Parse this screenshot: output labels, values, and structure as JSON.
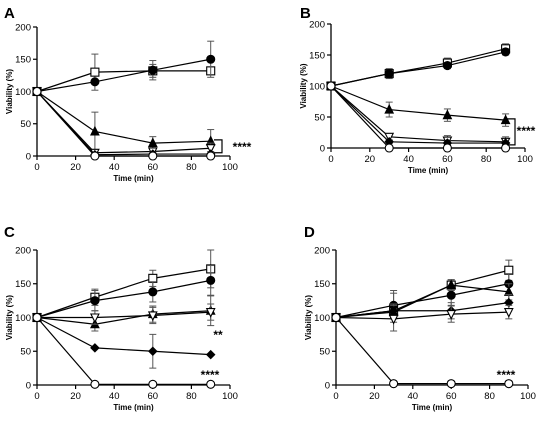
{
  "chart_data": [
    {
      "panel": "A",
      "type": "line",
      "xlabel": "Time (min)",
      "ylabel": "Viability (%)",
      "xlim": [
        0,
        100
      ],
      "ylim": [
        0,
        200
      ],
      "xticks": [
        0,
        20,
        40,
        60,
        80,
        100
      ],
      "yticks": [
        0,
        50,
        100,
        150,
        200
      ],
      "grid": false,
      "x": [
        0,
        30,
        60,
        90
      ],
      "series": [
        {
          "marker": "open-square",
          "values": [
            100,
            130,
            132,
            132
          ],
          "errors": [
            0,
            28,
            10,
            0
          ]
        },
        {
          "marker": "filled-circle",
          "values": [
            100,
            115,
            133,
            150
          ],
          "errors": [
            0,
            0,
            15,
            28
          ]
        },
        {
          "marker": "filled-triangle",
          "values": [
            100,
            38,
            20,
            23
          ],
          "errors": [
            0,
            30,
            10,
            18
          ]
        },
        {
          "marker": "open-triangle-down",
          "values": [
            100,
            5,
            7,
            12
          ],
          "errors": [
            0,
            4,
            5,
            8
          ]
        },
        {
          "marker": "filled-diamond",
          "values": [
            100,
            2,
            3,
            3
          ],
          "errors": [
            0,
            2,
            3,
            4
          ]
        },
        {
          "marker": "open-circle",
          "values": [
            100,
            0,
            0,
            0
          ],
          "errors": [
            0,
            0,
            0,
            0
          ]
        }
      ],
      "annotations": [
        {
          "text": "****",
          "bracket": [
            5,
            25
          ]
        }
      ]
    },
    {
      "panel": "B",
      "type": "line",
      "xlabel": "Time (min)",
      "ylabel": "Viability (%)",
      "xlim": [
        0,
        100
      ],
      "ylim": [
        0,
        200
      ],
      "xticks": [
        0,
        20,
        40,
        60,
        80,
        100
      ],
      "yticks": [
        0,
        50,
        100,
        150,
        200
      ],
      "grid": false,
      "x": [
        0,
        30,
        60,
        90
      ],
      "series": [
        {
          "marker": "open-square",
          "values": [
            100,
            120,
            137,
            160
          ],
          "errors": [
            0,
            8,
            8,
            8
          ]
        },
        {
          "marker": "filled-circle",
          "values": [
            100,
            120,
            133,
            155
          ],
          "errors": [
            0,
            5,
            5,
            5
          ]
        },
        {
          "marker": "filled-triangle",
          "values": [
            100,
            62,
            53,
            45
          ],
          "errors": [
            0,
            12,
            10,
            10
          ]
        },
        {
          "marker": "open-triangle-down",
          "values": [
            100,
            18,
            12,
            10
          ],
          "errors": [
            0,
            5,
            8,
            8
          ]
        },
        {
          "marker": "filled-diamond",
          "values": [
            100,
            10,
            8,
            8
          ],
          "errors": [
            0,
            3,
            3,
            3
          ]
        },
        {
          "marker": "open-circle",
          "values": [
            100,
            0,
            0,
            0
          ],
          "errors": [
            0,
            0,
            0,
            0
          ]
        }
      ],
      "annotations": [
        {
          "text": "****",
          "bracket": [
            5,
            47
          ]
        }
      ]
    },
    {
      "panel": "C",
      "type": "line",
      "xlabel": "Time (min)",
      "ylabel": "Viability (%)",
      "xlim": [
        0,
        100
      ],
      "ylim": [
        0,
        200
      ],
      "xticks": [
        0,
        20,
        40,
        60,
        80,
        100
      ],
      "yticks": [
        0,
        50,
        100,
        150,
        200
      ],
      "grid": false,
      "x": [
        0,
        30,
        60,
        90
      ],
      "series": [
        {
          "marker": "open-square",
          "values": [
            100,
            130,
            158,
            172
          ],
          "errors": [
            0,
            12,
            12,
            28
          ]
        },
        {
          "marker": "filled-circle",
          "values": [
            100,
            125,
            138,
            155
          ],
          "errors": [
            0,
            15,
            15,
            22
          ]
        },
        {
          "marker": "filled-triangle",
          "values": [
            100,
            90,
            105,
            110
          ],
          "errors": [
            0,
            10,
            12,
            22
          ]
        },
        {
          "marker": "open-triangle-down",
          "values": [
            100,
            100,
            103,
            108
          ],
          "errors": [
            0,
            10,
            12,
            12
          ]
        },
        {
          "marker": "filled-diamond",
          "values": [
            100,
            55,
            50,
            45
          ],
          "errors": [
            0,
            0,
            25,
            0
          ]
        },
        {
          "marker": "open-circle",
          "values": [
            100,
            1,
            1,
            1
          ],
          "errors": [
            0,
            0,
            0,
            0
          ]
        }
      ],
      "annotations": [
        {
          "text": "**"
        },
        {
          "text": "****"
        }
      ]
    },
    {
      "panel": "D",
      "type": "line",
      "xlabel": "Time (min)",
      "ylabel": "Viability (%)",
      "xlim": [
        0,
        100
      ],
      "ylim": [
        0,
        200
      ],
      "xticks": [
        0,
        20,
        40,
        60,
        80,
        100
      ],
      "yticks": [
        0,
        50,
        100,
        150,
        200
      ],
      "grid": false,
      "x": [
        0,
        30,
        60,
        90
      ],
      "series": [
        {
          "marker": "open-square",
          "values": [
            100,
            110,
            148,
            170
          ],
          "errors": [
            0,
            30,
            8,
            15
          ]
        },
        {
          "marker": "filled-circle",
          "values": [
            100,
            118,
            133,
            150
          ],
          "errors": [
            0,
            18,
            15,
            15
          ]
        },
        {
          "marker": "filled-triangle",
          "values": [
            100,
            108,
            148,
            138
          ],
          "errors": [
            0,
            10,
            8,
            12
          ]
        },
        {
          "marker": "filled-diamond",
          "values": [
            100,
            110,
            110,
            122
          ],
          "errors": [
            0,
            10,
            12,
            12
          ]
        },
        {
          "marker": "open-triangle-down",
          "values": [
            100,
            98,
            105,
            108
          ],
          "errors": [
            0,
            5,
            12,
            10
          ]
        },
        {
          "marker": "open-circle",
          "values": [
            100,
            2,
            2,
            2
          ],
          "errors": [
            0,
            0,
            0,
            0
          ]
        }
      ],
      "annotations": [
        {
          "text": "****"
        }
      ]
    }
  ]
}
